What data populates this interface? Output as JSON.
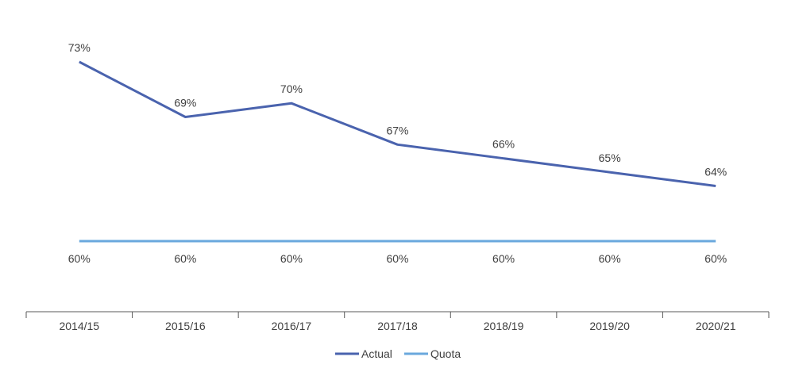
{
  "chart_data": {
    "type": "line",
    "categories": [
      "2014/15",
      "2015/16",
      "2016/17",
      "2017/18",
      "2018/19",
      "2019/20",
      "2020/21"
    ],
    "series": [
      {
        "name": "Actual",
        "values": [
          73,
          69,
          70,
          67,
          66,
          65,
          64
        ],
        "labels": [
          "73%",
          "69%",
          "70%",
          "67%",
          "66%",
          "65%",
          "64%"
        ],
        "color": "#4a63ae"
      },
      {
        "name": "Quota",
        "values": [
          60,
          60,
          60,
          60,
          60,
          60,
          60
        ],
        "labels": [
          "60%",
          "60%",
          "60%",
          "60%",
          "60%",
          "60%",
          "60%"
        ],
        "color": "#6aa8dd"
      }
    ],
    "title": "",
    "xlabel": "",
    "ylabel": "",
    "ylim": [
      57,
      75
    ],
    "grid": false,
    "legend": "bottom-center"
  }
}
